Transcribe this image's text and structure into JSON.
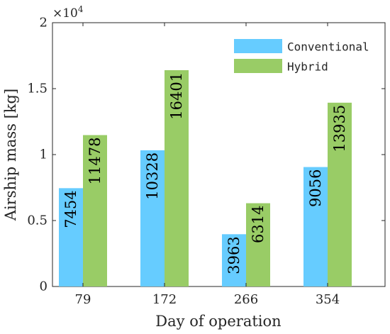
{
  "chart_data": {
    "type": "bar",
    "categories": [
      "79",
      "172",
      "266",
      "354"
    ],
    "series": [
      {
        "name": "Conventional",
        "values": [
          7454,
          10328,
          3963,
          9056
        ],
        "color": "#66ccff"
      },
      {
        "name": "Hybrid",
        "values": [
          11478,
          16401,
          6314,
          13935
        ],
        "color": "#99cc66"
      }
    ],
    "data_labels": {
      "Conventional": [
        "7454",
        "10328",
        "3963",
        "9056"
      ],
      "Hybrid": [
        "11478",
        "16401",
        "6314",
        "13935"
      ]
    },
    "xlabel": "Day of operation",
    "ylabel": "Airship mass [kg]",
    "ylim": [
      0,
      20000
    ],
    "yticks": [
      0,
      5000,
      10000,
      15000,
      20000
    ],
    "ytick_labels": [
      "0",
      "0.5",
      "1",
      "1.5",
      "2"
    ],
    "y_exponent_base": "×10",
    "y_exponent_power": "4",
    "grid": false,
    "legend_position": "top-right",
    "data_label_orientation": "vertical"
  }
}
